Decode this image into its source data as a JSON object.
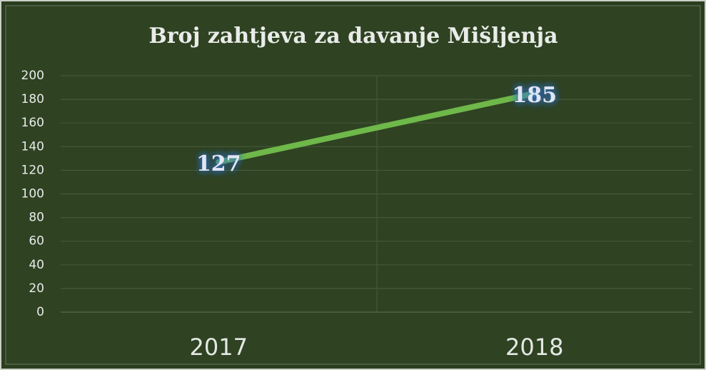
{
  "chart_data": {
    "type": "line",
    "title": "Broj zahtjeva za davanje Mišljenja",
    "categories": [
      "2017",
      "2018"
    ],
    "series": [
      {
        "name": "Broj zahtjeva",
        "color": "#6fb84a",
        "values": [
          127,
          185
        ]
      }
    ],
    "ylim": [
      0,
      200
    ],
    "yticks": [
      0,
      20,
      40,
      60,
      80,
      100,
      120,
      140,
      160,
      180,
      200
    ],
    "grid": true
  }
}
